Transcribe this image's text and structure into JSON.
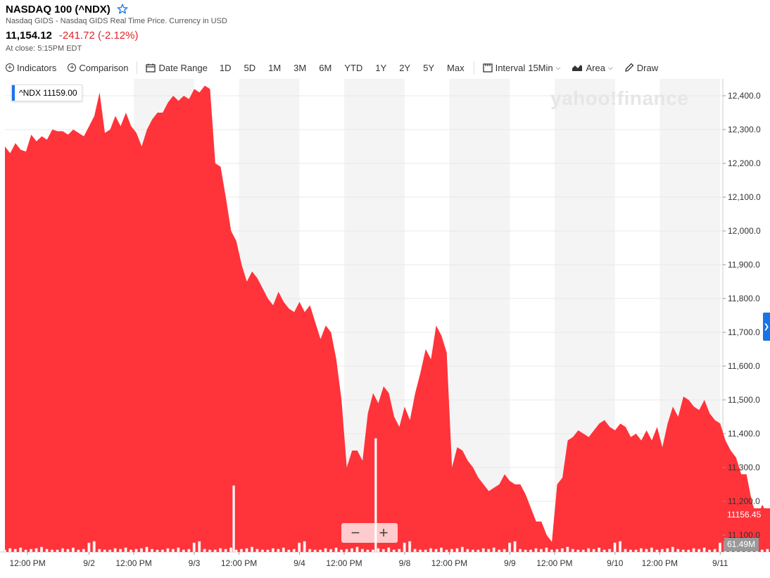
{
  "header": {
    "title": "NASDAQ 100 (^NDX)",
    "subtitle": "Nasdaq GIDS - Nasdaq GIDS Real Time Price. Currency in USD",
    "price": "11,154.12",
    "change": "-241.72 (-2.12%)",
    "close_time": "At close: 5:15PM EDT"
  },
  "toolbar": {
    "indicators": "Indicators",
    "comparison": "Comparison",
    "date_range": "Date Range",
    "ranges": [
      "1D",
      "5D",
      "1M",
      "3M",
      "6M",
      "YTD",
      "1Y",
      "2Y",
      "5Y",
      "Max"
    ],
    "interval_label": "Interval",
    "interval_value": "15Min",
    "chart_type": "Area",
    "draw": "Draw"
  },
  "overlay": {
    "ticker_tag": "^NDX  11159.00",
    "watermark": "yahoo!finance",
    "last_price_tag": "11156.45",
    "volume_tag": "61.49M",
    "zoom_out": "−",
    "zoom_in": "+"
  },
  "colors": {
    "area": "#ff333a",
    "shade": "#f4f4f4",
    "accent": "#1a73e8",
    "negative": "#e0242b"
  },
  "chart_data": {
    "type": "area",
    "title": "",
    "series": [
      {
        "values": [
          12250,
          12230,
          12260,
          12240,
          12235,
          12285,
          12265,
          12280,
          12270,
          12300,
          12295,
          12295,
          12285,
          12300,
          12290,
          12280,
          12310,
          12340,
          12410,
          12290,
          12300,
          12340,
          12310,
          12350,
          12310,
          12290,
          12250,
          12300,
          12330,
          12350,
          12350,
          12380,
          12400,
          12385,
          12400,
          12390,
          12420,
          12410,
          12430,
          12420,
          12200,
          12190,
          12100,
          12000,
          11970,
          11900,
          11850,
          11880,
          11860,
          11830,
          11800,
          11780,
          11820,
          11790,
          11770,
          11760,
          11790,
          11760,
          11780,
          11730,
          11680,
          11720,
          11700,
          11620,
          11500,
          11300,
          11350,
          11350,
          11320,
          11460,
          11520,
          11490,
          11540,
          11520,
          11450,
          11420,
          11480,
          11440,
          11520,
          11580,
          11650,
          11620,
          11720,
          11690,
          11640,
          11300,
          11360,
          11350,
          11320,
          11300,
          11270,
          11250,
          11230,
          11240,
          11250,
          11280,
          11260,
          11250,
          11250,
          11220,
          11180,
          11140,
          11140,
          11100,
          11080,
          11250,
          11270,
          11380,
          11390,
          11410,
          11400,
          11390,
          11410,
          11430,
          11440,
          11420,
          11410,
          11430,
          11420,
          11390,
          11400,
          11380,
          11410,
          11380,
          11420,
          11360,
          11430,
          11480,
          11450,
          11510,
          11500,
          11480,
          11470,
          11500,
          11460,
          11440,
          11430,
          11380,
          11350,
          11330,
          11280,
          11280,
          11200,
          11150,
          11190,
          11160,
          11180,
          11154
        ]
      }
    ],
    "ylim": [
      11050,
      12450
    ],
    "y_ticks": [
      12400,
      12300,
      12200,
      12100,
      12000,
      11900,
      11800,
      11700,
      11600,
      11500,
      11400,
      11300,
      11200,
      11100
    ],
    "y_tick_labels": [
      "12,400.0",
      "12,300.0",
      "12,200.0",
      "12,100.0",
      "12,000.0",
      "11,900.0",
      "11,800.0",
      "11,700.0",
      "11,600.0",
      "11,500.0",
      "11,400.0",
      "11,300.0",
      "11,200.0",
      "11,100.0"
    ],
    "x_ticks": [
      {
        "label": "12:00 PM",
        "at": 4.3
      },
      {
        "label": "9/2",
        "at": 16
      },
      {
        "label": "12:00 PM",
        "at": 24.5
      },
      {
        "label": "9/3",
        "at": 36
      },
      {
        "label": "12:00 PM",
        "at": 44.5
      },
      {
        "label": "9/4",
        "at": 56
      },
      {
        "label": "12:00 PM",
        "at": 64.5
      },
      {
        "label": "9/8",
        "at": 76
      },
      {
        "label": "12:00 PM",
        "at": 84.5
      },
      {
        "label": "9/9",
        "at": 96
      },
      {
        "label": "12:00 PM",
        "at": 104.5
      },
      {
        "label": "9/10",
        "at": 116
      },
      {
        "label": "12:00 PM",
        "at": 124.5
      },
      {
        "label": "9/11",
        "at": 136
      }
    ],
    "shaded_ranges": [
      [
        24.5,
        36
      ],
      [
        44.5,
        56
      ],
      [
        64.5,
        76
      ],
      [
        84.5,
        96
      ],
      [
        104.5,
        116
      ],
      [
        124.5,
        136
      ]
    ],
    "volume_spikes": [
      {
        "at": 43.5,
        "level": 0.14
      },
      {
        "at": 70.5,
        "level": 0.24
      }
    ],
    "grid": true,
    "last_value": 11156.45,
    "last_volume": "61.49M"
  }
}
